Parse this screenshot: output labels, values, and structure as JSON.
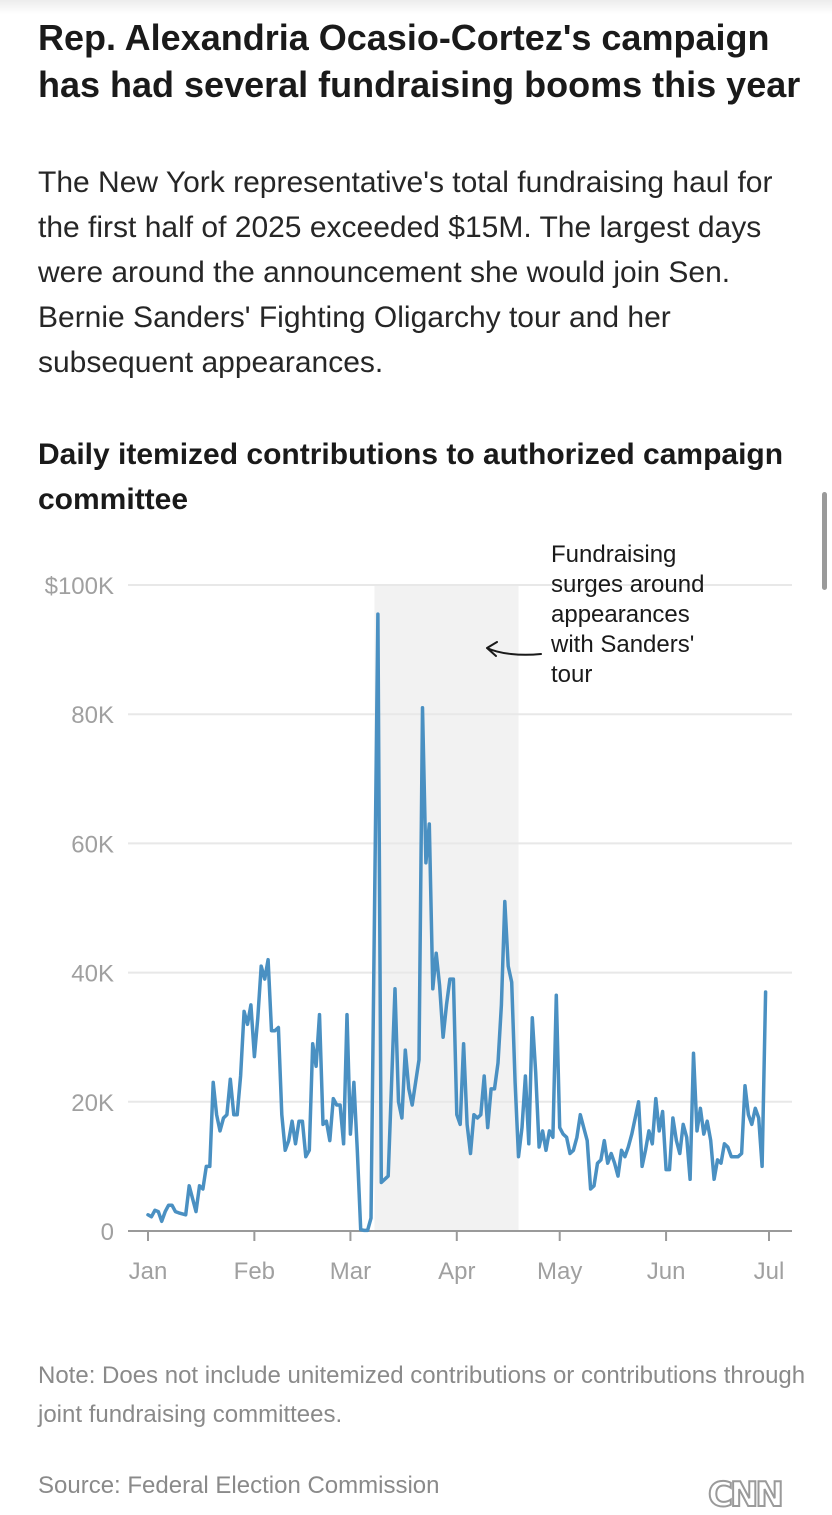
{
  "headline": "Rep. Alexandria Ocasio-Cortez's campaign has had several fundraising booms this year",
  "dek": "The New York representative's total fundraising haul for the first half of 2025 exceeded $15M. The largest days were around the announcement she would join Sen. Bernie Sanders' Fighting Oligarchy tour and her subsequent appearances.",
  "note": "Note: Does not include unitemized contributions or contributions through joint fundraising committees.",
  "source": "Source: Federal Election Commission",
  "logo_text": "CNN",
  "colors": {
    "line": "#4a90c2",
    "shade": "#f2f2f2",
    "grid": "#e8e8e8",
    "axis_text": "#a0a0a0",
    "annotation_text": "#1a1a1a"
  },
  "chart_data": {
    "type": "line",
    "title": "Daily itemized contributions to authorized campaign committee",
    "x_ticks": [
      "Jan",
      "Feb",
      "Mar",
      "Apr",
      "May",
      "Jun",
      "Jul"
    ],
    "y_ticks": [
      "0",
      "20K",
      "40K",
      "60K",
      "80K",
      "$100K"
    ],
    "ylim": [
      0,
      100000
    ],
    "xlim": [
      "2025-01-01",
      "2025-07-01"
    ],
    "grid": true,
    "shaded_range": [
      "2025-03-08",
      "2025-04-19"
    ],
    "annotation": "Fundraising surges around appearances with Sanders' tour",
    "annotation_lines": [
      "Fundraising",
      "surges around",
      "appearances",
      "with Sanders'",
      "tour"
    ],
    "series": [
      {
        "points": [
          [
            "2025-01-01",
            2500
          ],
          [
            "2025-01-02",
            2200
          ],
          [
            "2025-01-03",
            3200
          ],
          [
            "2025-01-04",
            3000
          ],
          [
            "2025-01-05",
            1500
          ],
          [
            "2025-01-06",
            3000
          ],
          [
            "2025-01-07",
            4000
          ],
          [
            "2025-01-08",
            4000
          ],
          [
            "2025-01-09",
            3000
          ],
          [
            "2025-01-10",
            2800
          ],
          [
            "2025-01-12",
            2500
          ],
          [
            "2025-01-13",
            7000
          ],
          [
            "2025-01-15",
            3000
          ],
          [
            "2025-01-16",
            7000
          ],
          [
            "2025-01-17",
            6500
          ],
          [
            "2025-01-18",
            10000
          ],
          [
            "2025-01-19",
            10000
          ],
          [
            "2025-01-20",
            23000
          ],
          [
            "2025-01-21",
            18000
          ],
          [
            "2025-01-22",
            15500
          ],
          [
            "2025-01-23",
            17500
          ],
          [
            "2025-01-24",
            18000
          ],
          [
            "2025-01-25",
            23500
          ],
          [
            "2025-01-26",
            18000
          ],
          [
            "2025-01-27",
            18000
          ],
          [
            "2025-01-28",
            24000
          ],
          [
            "2025-01-29",
            34000
          ],
          [
            "2025-01-30",
            32000
          ],
          [
            "2025-01-31",
            35000
          ],
          [
            "2025-02-01",
            27000
          ],
          [
            "2025-02-02",
            33000
          ],
          [
            "2025-02-03",
            41000
          ],
          [
            "2025-02-04",
            39000
          ],
          [
            "2025-02-05",
            42000
          ],
          [
            "2025-02-06",
            31000
          ],
          [
            "2025-02-07",
            31000
          ],
          [
            "2025-02-08",
            31500
          ],
          [
            "2025-02-09",
            18000
          ],
          [
            "2025-02-10",
            12500
          ],
          [
            "2025-02-11",
            14000
          ],
          [
            "2025-02-12",
            17000
          ],
          [
            "2025-02-13",
            13500
          ],
          [
            "2025-02-14",
            17000
          ],
          [
            "2025-02-15",
            17000
          ],
          [
            "2025-02-16",
            11500
          ],
          [
            "2025-02-17",
            12500
          ],
          [
            "2025-02-18",
            29000
          ],
          [
            "2025-02-19",
            25500
          ],
          [
            "2025-02-20",
            33500
          ],
          [
            "2025-02-21",
            16500
          ],
          [
            "2025-02-22",
            17000
          ],
          [
            "2025-02-23",
            14000
          ],
          [
            "2025-02-24",
            20500
          ],
          [
            "2025-02-25",
            19500
          ],
          [
            "2025-02-26",
            19500
          ],
          [
            "2025-02-27",
            13500
          ],
          [
            "2025-02-28",
            33500
          ],
          [
            "2025-03-01",
            15000
          ],
          [
            "2025-03-02",
            23000
          ],
          [
            "2025-03-03",
            12500
          ],
          [
            "2025-03-04",
            200
          ],
          [
            "2025-03-05",
            100
          ],
          [
            "2025-03-06",
            100
          ],
          [
            "2025-03-07",
            2000
          ],
          [
            "2025-03-09",
            95500
          ],
          [
            "2025-03-10",
            7500
          ],
          [
            "2025-03-11",
            8000
          ],
          [
            "2025-03-12",
            8500
          ],
          [
            "2025-03-14",
            37500
          ],
          [
            "2025-03-15",
            20000
          ],
          [
            "2025-03-16",
            17500
          ],
          [
            "2025-03-17",
            28000
          ],
          [
            "2025-03-18",
            22000
          ],
          [
            "2025-03-19",
            19500
          ],
          [
            "2025-03-20",
            23000
          ],
          [
            "2025-03-21",
            26500
          ],
          [
            "2025-03-22",
            81000
          ],
          [
            "2025-03-23",
            57000
          ],
          [
            "2025-03-24",
            63000
          ],
          [
            "2025-03-25",
            37500
          ],
          [
            "2025-03-26",
            43000
          ],
          [
            "2025-03-27",
            38000
          ],
          [
            "2025-03-28",
            30000
          ],
          [
            "2025-03-29",
            35000
          ],
          [
            "2025-03-30",
            39000
          ],
          [
            "2025-03-31",
            39000
          ],
          [
            "2025-04-01",
            18000
          ],
          [
            "2025-04-02",
            16500
          ],
          [
            "2025-04-03",
            29000
          ],
          [
            "2025-04-04",
            16500
          ],
          [
            "2025-04-05",
            12000
          ],
          [
            "2025-04-06",
            18000
          ],
          [
            "2025-04-07",
            17500
          ],
          [
            "2025-04-08",
            18000
          ],
          [
            "2025-04-09",
            24000
          ],
          [
            "2025-04-10",
            16000
          ],
          [
            "2025-04-11",
            22000
          ],
          [
            "2025-04-12",
            22000
          ],
          [
            "2025-04-13",
            26000
          ],
          [
            "2025-04-14",
            35000
          ],
          [
            "2025-04-15",
            51000
          ],
          [
            "2025-04-16",
            41000
          ],
          [
            "2025-04-17",
            38500
          ],
          [
            "2025-04-18",
            23000
          ],
          [
            "2025-04-19",
            11500
          ],
          [
            "2025-04-20",
            16000
          ],
          [
            "2025-04-21",
            24000
          ],
          [
            "2025-04-22",
            13500
          ],
          [
            "2025-04-23",
            33000
          ],
          [
            "2025-04-24",
            24500
          ],
          [
            "2025-04-25",
            13000
          ],
          [
            "2025-04-26",
            15500
          ],
          [
            "2025-04-27",
            12500
          ],
          [
            "2025-04-28",
            15500
          ],
          [
            "2025-04-29",
            14500
          ],
          [
            "2025-04-30",
            36500
          ],
          [
            "2025-05-01",
            16000
          ],
          [
            "2025-05-02",
            15000
          ],
          [
            "2025-05-03",
            14500
          ],
          [
            "2025-05-04",
            12000
          ],
          [
            "2025-05-05",
            12500
          ],
          [
            "2025-05-06",
            14500
          ],
          [
            "2025-05-07",
            18000
          ],
          [
            "2025-05-08",
            16000
          ],
          [
            "2025-05-09",
            14000
          ],
          [
            "2025-05-10",
            6500
          ],
          [
            "2025-05-11",
            7000
          ],
          [
            "2025-05-12",
            10500
          ],
          [
            "2025-05-13",
            11000
          ],
          [
            "2025-05-14",
            14000
          ],
          [
            "2025-05-15",
            10500
          ],
          [
            "2025-05-16",
            12000
          ],
          [
            "2025-05-17",
            10500
          ],
          [
            "2025-05-18",
            8500
          ],
          [
            "2025-05-19",
            12500
          ],
          [
            "2025-05-20",
            11500
          ],
          [
            "2025-05-21",
            13000
          ],
          [
            "2025-05-22",
            15000
          ],
          [
            "2025-05-23",
            17500
          ],
          [
            "2025-05-24",
            20000
          ],
          [
            "2025-05-25",
            10000
          ],
          [
            "2025-05-26",
            12500
          ],
          [
            "2025-05-27",
            15500
          ],
          [
            "2025-05-28",
            13500
          ],
          [
            "2025-05-29",
            20500
          ],
          [
            "2025-05-30",
            15500
          ],
          [
            "2025-05-31",
            18500
          ],
          [
            "2025-06-01",
            9500
          ],
          [
            "2025-06-02",
            9500
          ],
          [
            "2025-06-03",
            17500
          ],
          [
            "2025-06-04",
            14000
          ],
          [
            "2025-06-05",
            12000
          ],
          [
            "2025-06-06",
            16500
          ],
          [
            "2025-06-07",
            14500
          ],
          [
            "2025-06-08",
            8000
          ],
          [
            "2025-06-09",
            27500
          ],
          [
            "2025-06-10",
            15500
          ],
          [
            "2025-06-11",
            19000
          ],
          [
            "2025-06-12",
            15000
          ],
          [
            "2025-06-13",
            17000
          ],
          [
            "2025-06-14",
            14000
          ],
          [
            "2025-06-15",
            8000
          ],
          [
            "2025-06-16",
            11000
          ],
          [
            "2025-06-17",
            10500
          ],
          [
            "2025-06-18",
            13500
          ],
          [
            "2025-06-19",
            13000
          ],
          [
            "2025-06-20",
            11500
          ],
          [
            "2025-06-21",
            11500
          ],
          [
            "2025-06-22",
            11500
          ],
          [
            "2025-06-23",
            12000
          ],
          [
            "2025-06-24",
            22500
          ],
          [
            "2025-06-25",
            18000
          ],
          [
            "2025-06-26",
            16500
          ],
          [
            "2025-06-27",
            19000
          ],
          [
            "2025-06-28",
            17500
          ],
          [
            "2025-06-29",
            10000
          ],
          [
            "2025-06-30",
            37000
          ]
        ]
      }
    ]
  }
}
